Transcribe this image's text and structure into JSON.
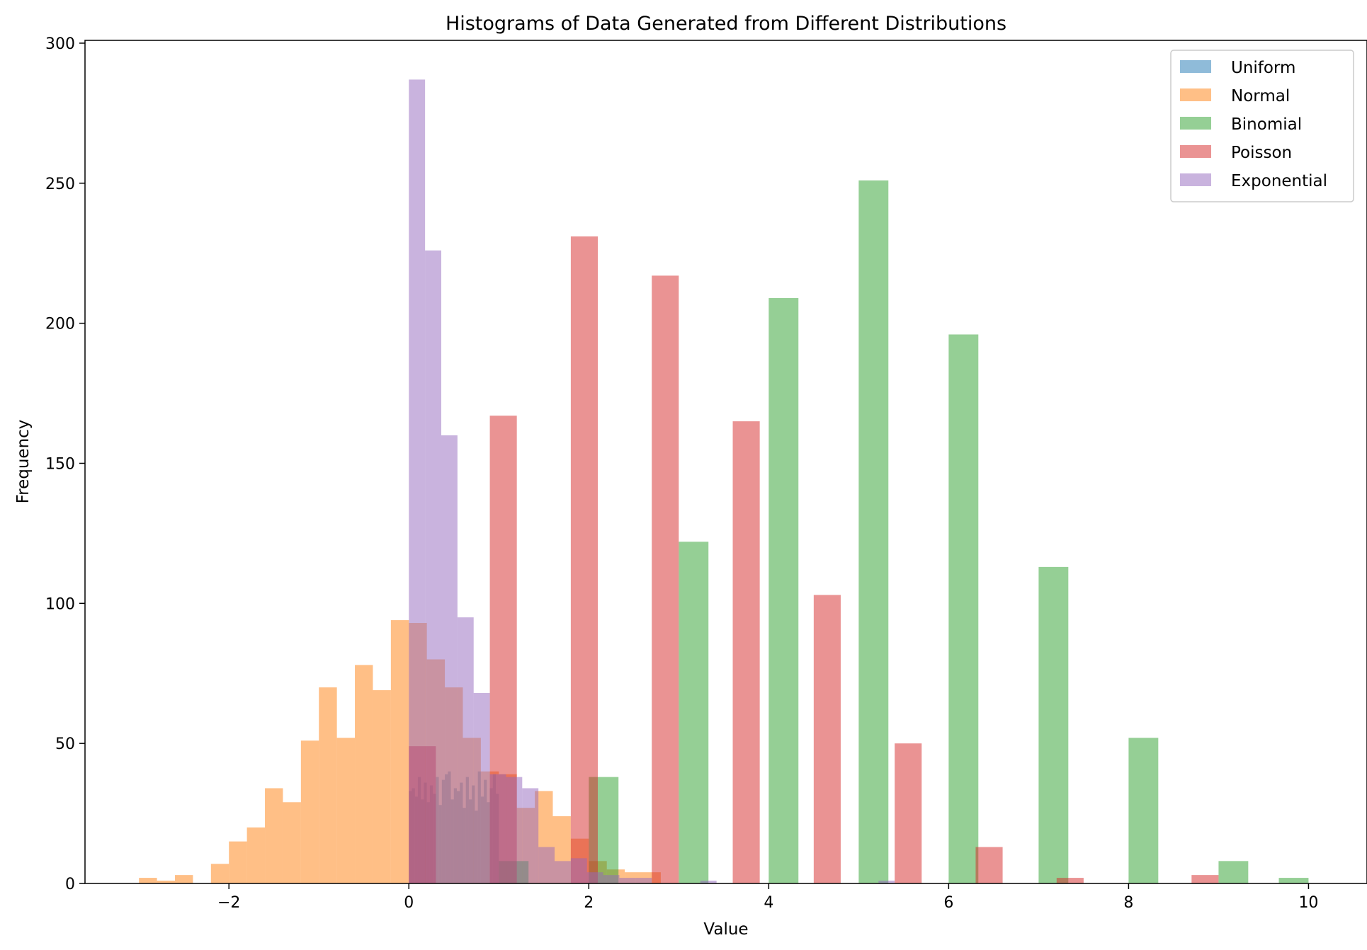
{
  "chart_data": {
    "type": "histogram",
    "title": "Histograms of Data Generated from Different Distributions",
    "xlabel": "Value",
    "ylabel": "Frequency",
    "xlim": [
      -3.6,
      10.65
    ],
    "ylim": [
      0,
      301
    ],
    "xticks": [
      -2,
      0,
      2,
      4,
      6,
      8,
      10
    ],
    "xtick_labels": [
      "−2",
      "0",
      "2",
      "4",
      "6",
      "8",
      "10"
    ],
    "yticks": [
      0,
      50,
      100,
      150,
      200,
      250,
      300
    ],
    "ytick_labels": [
      "0",
      "50",
      "100",
      "150",
      "200",
      "250",
      "300"
    ],
    "legend_position": "top-right",
    "alpha": 0.5,
    "series": [
      {
        "name": "Uniform",
        "color": "#1f77b4",
        "bins": [
          0,
          0.0333,
          0.0667,
          0.1,
          0.1333,
          0.1667,
          0.2,
          0.2333,
          0.2667,
          0.3,
          0.3333,
          0.3667,
          0.4,
          0.4333,
          0.4667,
          0.5,
          0.5333,
          0.5667,
          0.6,
          0.6333,
          0.6667,
          0.7,
          0.7333,
          0.7667,
          0.8,
          0.8333,
          0.8667,
          0.9,
          0.9333,
          0.9667,
          1.0
        ],
        "counts": [
          33,
          34,
          31,
          38,
          30,
          36,
          29,
          35,
          32,
          38,
          28,
          37,
          39,
          40,
          30,
          34,
          33,
          36,
          27,
          38,
          30,
          35,
          26,
          40,
          31,
          37,
          29,
          34,
          39,
          32
        ]
      },
      {
        "name": "Normal",
        "color": "#ff7f0e",
        "bins": [
          -3.0,
          -2.8,
          -2.6,
          -2.4,
          -2.2,
          -2.0,
          -1.8,
          -1.6,
          -1.4,
          -1.2,
          -1.0,
          -0.8,
          -0.6,
          -0.4,
          -0.2,
          0.0,
          0.2,
          0.4,
          0.6,
          0.8,
          1.0,
          1.2,
          1.4,
          1.6,
          1.8,
          2.0,
          2.2,
          2.4,
          2.6,
          2.8
        ],
        "counts": [
          2,
          1,
          3,
          0,
          7,
          15,
          20,
          34,
          29,
          51,
          70,
          52,
          78,
          69,
          94,
          93,
          80,
          70,
          52,
          40,
          39,
          27,
          33,
          24,
          16,
          8,
          5,
          4,
          4
        ]
      },
      {
        "name": "Binomial",
        "color": "#2ca02c",
        "bins": [
          0.0,
          0.33,
          0.67,
          1.0,
          1.33,
          1.67,
          2.0,
          2.33,
          2.67,
          3.0,
          3.33,
          3.67,
          4.0,
          4.33,
          4.67,
          5.0,
          5.33,
          5.67,
          6.0,
          6.33,
          6.67,
          7.0,
          7.33,
          7.67,
          8.0,
          8.33,
          8.67,
          9.0,
          9.33,
          9.67,
          10.0
        ],
        "counts": [
          0,
          0,
          0,
          8,
          0,
          0,
          38,
          0,
          0,
          122,
          0,
          0,
          209,
          0,
          0,
          251,
          0,
          0,
          196,
          0,
          0,
          113,
          0,
          0,
          52,
          0,
          0,
          8,
          0,
          2
        ]
      },
      {
        "name": "Poisson",
        "color": "#d62728",
        "bins": [
          0.0,
          0.3,
          0.6,
          0.9,
          1.2,
          1.5,
          1.8,
          2.1,
          2.4,
          2.7,
          3.0,
          3.3,
          3.6,
          3.9,
          4.2,
          4.5,
          4.8,
          5.1,
          5.4,
          5.7,
          6.0,
          6.3,
          6.6,
          6.9,
          7.2,
          7.5,
          7.8,
          8.1,
          8.4,
          8.7,
          9.0
        ],
        "counts": [
          49,
          0,
          0,
          167,
          0,
          0,
          231,
          0,
          0,
          217,
          0,
          0,
          165,
          0,
          0,
          103,
          0,
          0,
          50,
          0,
          0,
          13,
          0,
          0,
          2,
          0,
          0,
          0,
          0,
          3
        ]
      },
      {
        "name": "Exponential",
        "color": "#9467bd",
        "bins": [
          0.0,
          0.18,
          0.36,
          0.54,
          0.72,
          0.9,
          1.08,
          1.26,
          1.44,
          1.62,
          1.8,
          1.98,
          2.16,
          2.34,
          2.52,
          2.7,
          2.88,
          3.06,
          3.24,
          3.42,
          3.6,
          3.78,
          3.96,
          4.14,
          4.32,
          4.5,
          4.68,
          4.86,
          5.04,
          5.22,
          5.4
        ],
        "counts": [
          287,
          226,
          160,
          95,
          68,
          39,
          38,
          34,
          13,
          8,
          9,
          4,
          3,
          2,
          2,
          0,
          0,
          0,
          1,
          0,
          0,
          0,
          0,
          0,
          0,
          0,
          0,
          0,
          0,
          1
        ]
      }
    ]
  }
}
